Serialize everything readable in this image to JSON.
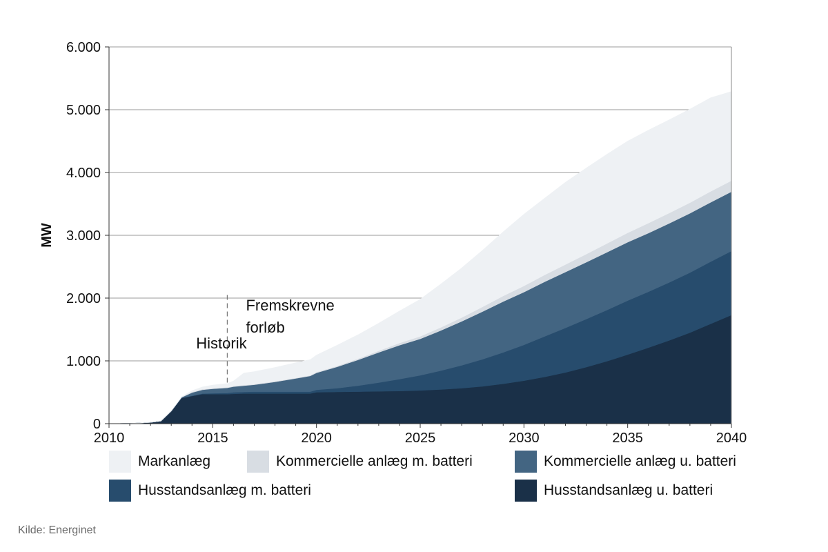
{
  "chart_data": {
    "type": "area",
    "stacked": true,
    "ylabel": "MW",
    "xlabel": "",
    "xlim": [
      2010,
      2040
    ],
    "ylim": [
      0,
      6000
    ],
    "x_ticks": [
      "2010",
      "2015",
      "2020",
      "2025",
      "2030",
      "2035",
      "2040"
    ],
    "y_ticks": [
      "0",
      "1.000",
      "2.000",
      "3.000",
      "4.000",
      "5.000",
      "6.000"
    ],
    "grid": "horizontal",
    "legend_position": "bottom",
    "x": [
      2010,
      2011,
      2011.5,
      2012,
      2012.5,
      2013,
      2013.5,
      2014,
      2014.5,
      2015,
      2015.7,
      2016,
      2016.5,
      2017,
      2018,
      2019,
      2019.7,
      2020,
      2021,
      2022,
      2023,
      2024,
      2025,
      2026,
      2027,
      2028,
      2029,
      2030,
      2031,
      2032,
      2033,
      2034,
      2035,
      2036,
      2037,
      2038,
      2039,
      2040
    ],
    "series": [
      {
        "name": "Husstandsanlæg u. batteri",
        "color": "#1a3048",
        "values": [
          0,
          5,
          10,
          20,
          40,
          200,
          410,
          440,
          470,
          470,
          470,
          475,
          480,
          480,
          480,
          480,
          480,
          500,
          505,
          510,
          515,
          520,
          530,
          545,
          565,
          595,
          635,
          685,
          745,
          815,
          900,
          995,
          1100,
          1210,
          1325,
          1450,
          1590,
          1730
        ]
      },
      {
        "name": "Husstandsanlæg m. batteri",
        "color": "#274c6d",
        "values": [
          0,
          0,
          0,
          0,
          0,
          0,
          0,
          5,
          10,
          15,
          20,
          25,
          25,
          30,
          30,
          30,
          30,
          40,
          60,
          95,
          140,
          190,
          240,
          300,
          365,
          430,
          500,
          570,
          645,
          710,
          765,
          815,
          860,
          890,
          925,
          955,
          990,
          1020
        ]
      },
      {
        "name": "Kommercielle anlæg u. batteri",
        "color": "#436582",
        "values": [
          0,
          0,
          0,
          0,
          0,
          0,
          10,
          50,
          60,
          70,
          80,
          90,
          100,
          110,
          155,
          210,
          250,
          270,
          340,
          410,
          480,
          540,
          580,
          640,
          700,
          760,
          810,
          840,
          870,
          890,
          905,
          920,
          930,
          935,
          940,
          945,
          945,
          945
        ]
      },
      {
        "name": "Kommercielle anlæg m. batteri",
        "color": "#d8dde3",
        "values": [
          0,
          0,
          0,
          0,
          0,
          0,
          5,
          10,
          10,
          10,
          10,
          10,
          10,
          10,
          10,
          10,
          10,
          12,
          15,
          20,
          25,
          35,
          40,
          50,
          60,
          75,
          90,
          100,
          110,
          120,
          130,
          140,
          150,
          160,
          165,
          170,
          175,
          175
        ]
      },
      {
        "name": "Markanlæg",
        "color": "#eef1f4",
        "values": [
          0,
          0,
          0,
          0,
          0,
          0,
          5,
          20,
          35,
          50,
          60,
          80,
          190,
          200,
          220,
          240,
          250,
          270,
          330,
          380,
          440,
          510,
          590,
          690,
          790,
          900,
          1020,
          1140,
          1220,
          1310,
          1370,
          1420,
          1460,
          1480,
          1485,
          1490,
          1490,
          1420
        ]
      }
    ],
    "annotations": [
      {
        "text": "Historik",
        "x": 2014.2,
        "y": 1200
      },
      {
        "text": "Fremskrevne",
        "x": 2016.6,
        "y": 1800
      },
      {
        "text": "forløb",
        "x": 2016.6,
        "y": 1450
      }
    ],
    "divider_x": 2015.7
  },
  "legend": [
    {
      "label": "Markanlæg",
      "color": "#eef1f4"
    },
    {
      "label": "Kommercielle anlæg m. batteri",
      "color": "#d8dde3"
    },
    {
      "label": "Kommercielle anlæg u. batteri",
      "color": "#436582"
    },
    {
      "label": "Husstandsanlæg m. batteri",
      "color": "#274c6d"
    },
    {
      "label": "Husstandsanlæg u. batteri",
      "color": "#1a3048"
    }
  ],
  "source": "Kilde: Energinet"
}
